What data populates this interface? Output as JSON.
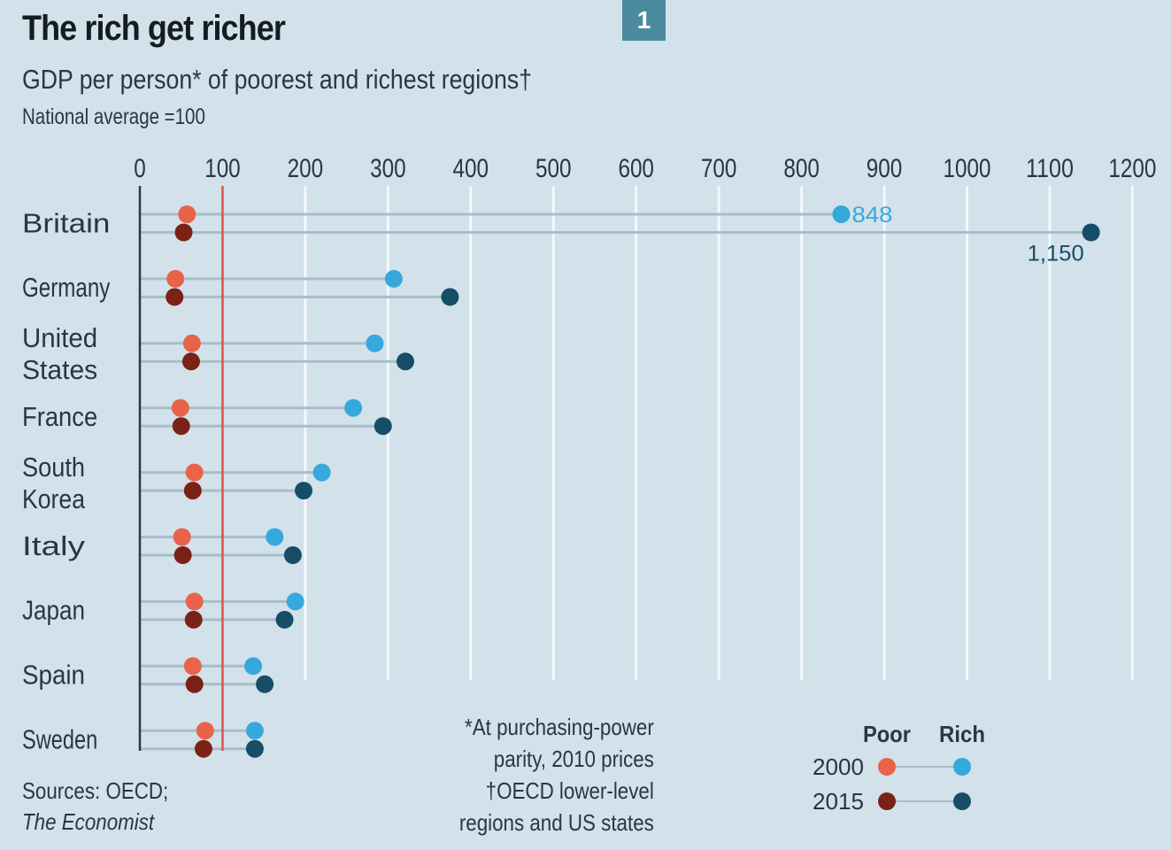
{
  "badge": "1",
  "colors": {
    "background": "#d3e1ea",
    "poor_2000": "#e8634a",
    "poor_2015": "#7a2216",
    "rich_2000": "#35a9dc",
    "rich_2015": "#154e66",
    "reference_line": "#d9534a",
    "axis": "#2b3640",
    "connector": "#a7bdcb",
    "gridline": "#f4f8fb",
    "badge": "#4c8aa0"
  },
  "footnote": {
    "lines": [
      "*At purchasing-power",
      "parity, 2010 prices",
      "†OECD lower-level",
      "regions and US states"
    ]
  },
  "sources": {
    "line1": "Sources: OECD;",
    "line2": "The Economist"
  },
  "chart_data": {
    "type": "dot-plot",
    "title": "The rich get richer",
    "subtitle": "GDP per person* of poorest and richest regions†",
    "units_note": "National average =100",
    "xlabel": "",
    "ylabel": "",
    "xlim": [
      0,
      1200
    ],
    "x_ticks": [
      0,
      100,
      200,
      300,
      400,
      500,
      600,
      700,
      800,
      900,
      1000,
      1100,
      1200
    ],
    "x_tick_labels": [
      "0",
      "100",
      "200",
      "300",
      "400",
      "500",
      "600",
      "700",
      "800",
      "900",
      "1000",
      "1100",
      "1200"
    ],
    "reference_line": 100,
    "grid": true,
    "categories": [
      "Britain",
      "Germany",
      "United States",
      "France",
      "South Korea",
      "Italy",
      "Japan",
      "Spain",
      "Sweden"
    ],
    "category_label_lines": [
      [
        "Britain"
      ],
      [
        "Germany"
      ],
      [
        "United",
        "States"
      ],
      [
        "France"
      ],
      [
        "South",
        "Korea"
      ],
      [
        "Italy"
      ],
      [
        "Japan"
      ],
      [
        "Spain"
      ],
      [
        "Sweden"
      ]
    ],
    "series": [
      {
        "name": "Poor 2000",
        "year": "2000",
        "group": "Poor",
        "values": [
          57,
          43,
          63,
          49,
          66,
          51,
          66,
          64,
          79
        ]
      },
      {
        "name": "Poor 2015",
        "year": "2015",
        "group": "Poor",
        "values": [
          53,
          42,
          62,
          50,
          64,
          52,
          65,
          66,
          77
        ]
      },
      {
        "name": "Rich 2000",
        "year": "2000",
        "group": "Rich",
        "values": [
          848,
          307,
          284,
          258,
          220,
          163,
          188,
          137,
          139
        ]
      },
      {
        "name": "Rich 2015",
        "year": "2015",
        "group": "Rich",
        "values": [
          1150,
          375,
          321,
          294,
          198,
          185,
          175,
          151,
          139
        ]
      }
    ],
    "annotations": [
      {
        "category": "Britain",
        "series": "Rich 2000",
        "text": "848"
      },
      {
        "category": "Britain",
        "series": "Rich 2015",
        "text": "1,150"
      }
    ],
    "legend": {
      "position": "bottom-right",
      "column_headers": [
        "Poor",
        "Rich"
      ],
      "rows": [
        "2000",
        "2015"
      ]
    }
  }
}
